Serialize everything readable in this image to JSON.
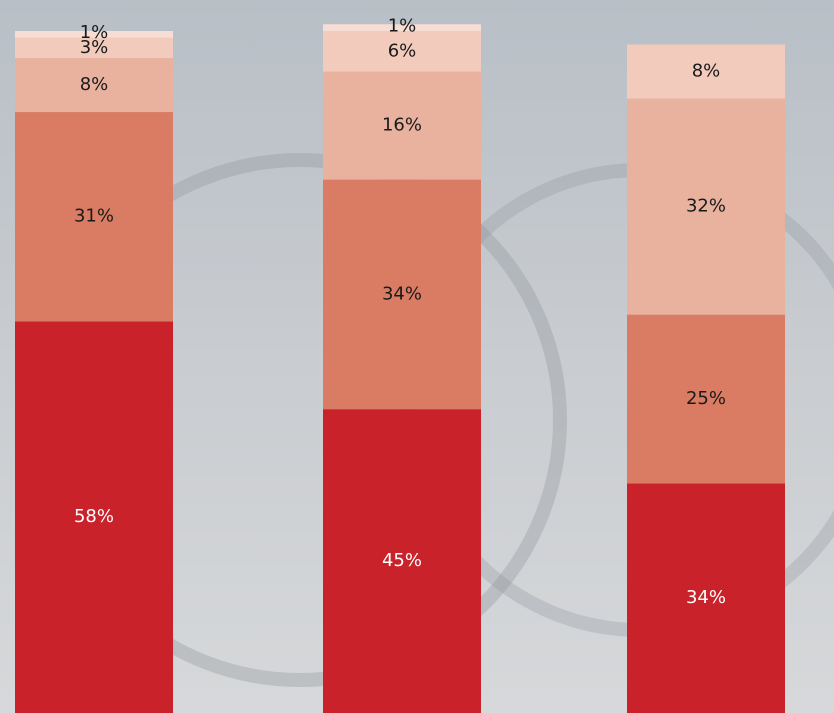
{
  "chart_data": {
    "type": "stacked-bar",
    "ylim": [
      0,
      105
    ],
    "series": [
      {
        "color": "#c9222b",
        "values": [
          58,
          45,
          34
        ],
        "value_labels": [
          "58%",
          "45%",
          "34%"
        ]
      },
      {
        "color": "#d97c63",
        "values": [
          31,
          34,
          25
        ],
        "value_labels": [
          "31%",
          "34%",
          "25%"
        ]
      },
      {
        "color": "#e9b29f",
        "values": [
          8,
          16,
          32
        ],
        "value_labels": [
          "8%",
          "16%",
          "32%"
        ]
      },
      {
        "color": "#f2cbbd",
        "values": [
          3,
          6,
          8
        ],
        "value_labels": [
          "3%",
          "6%",
          "8%"
        ]
      },
      {
        "color": "#f7ded5",
        "values": [
          1,
          1,
          null
        ],
        "value_labels": [
          "1%",
          "1%",
          null
        ]
      }
    ]
  }
}
